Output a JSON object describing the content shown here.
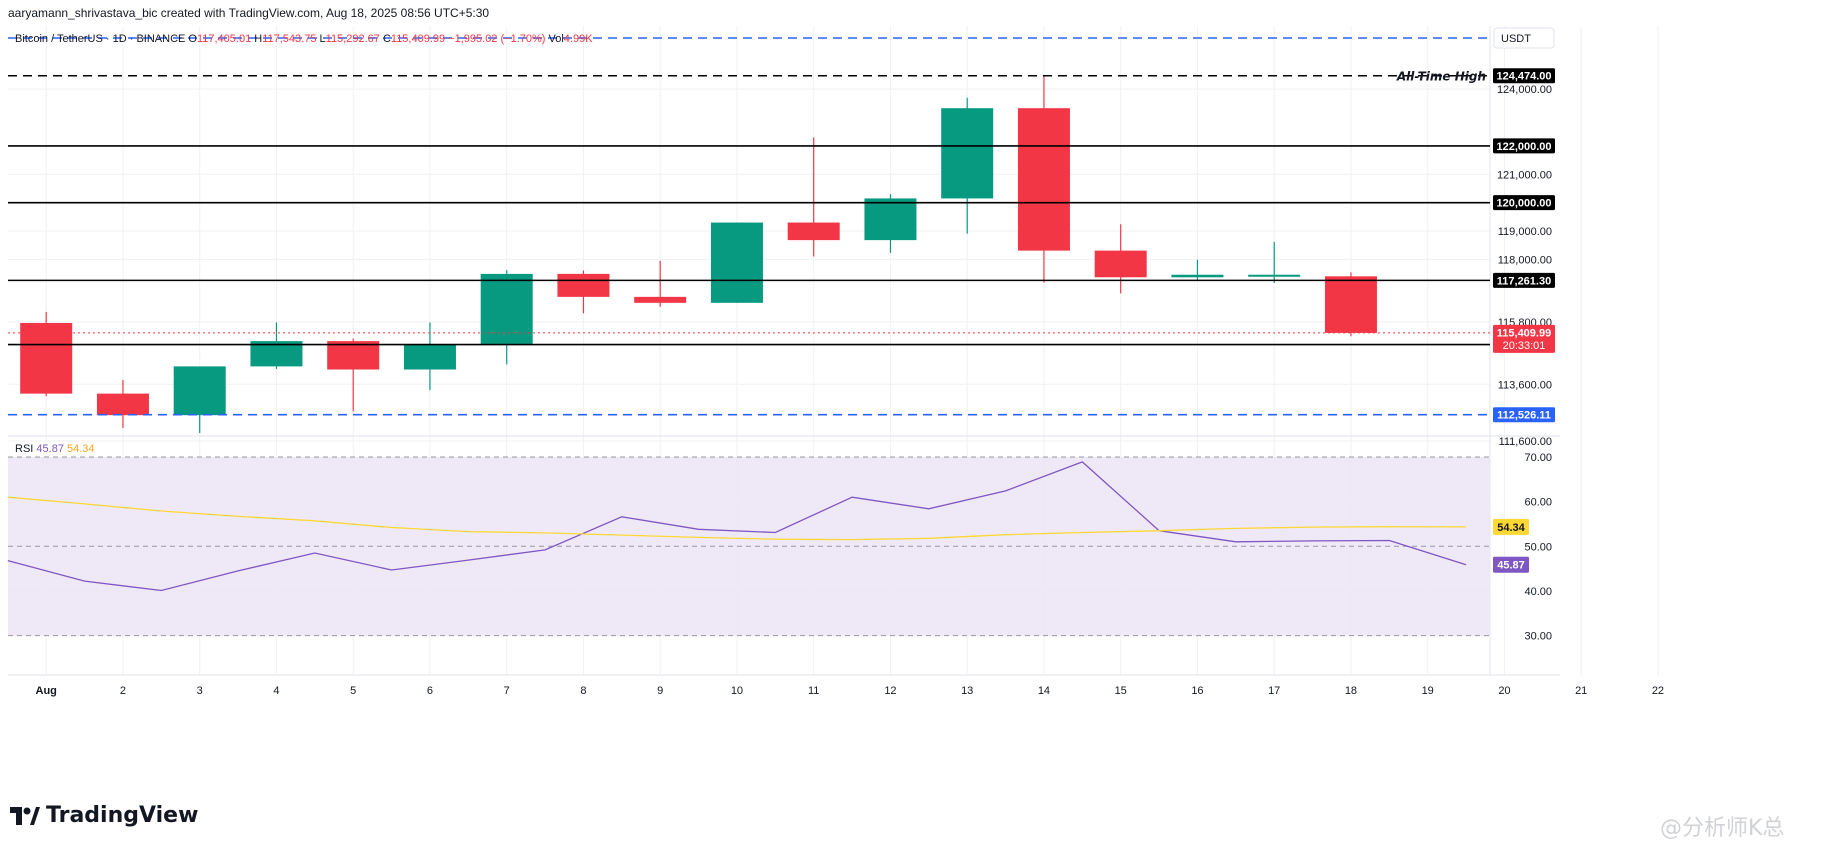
{
  "header": {
    "credit": "aaryamann_shrivastava_bic created with TradingView.com, Aug 18, 2025 08:56 UTC+5:30",
    "symbol": "Bitcoin / TetherUS · 1D · BINANCE",
    "o_label": "O",
    "o_value": "117,405.01",
    "h_label": "H",
    "h_value": "117,543.75",
    "l_label": "L",
    "l_value": "115,292.67",
    "c_label": "C",
    "c_value": "115,409.99",
    "change": "−1,995.02 (−1.70%)",
    "vol_label": "Vol",
    "vol_value": "4.99K"
  },
  "currency_badge": "USDT",
  "brand": "TradingView",
  "watermark": "@分析师K总",
  "colors": {
    "up": "#089981",
    "down": "#f23645",
    "blue_line": "#2962ff",
    "rsi": "#7e57c2",
    "rsi_ma": "#fdd835",
    "rsi_band": "#ede7f6"
  },
  "chart_data": [
    {
      "type": "candlestick",
      "title": "Bitcoin / TetherUS · 1D · BINANCE",
      "currency": "USDT",
      "x_labels": [
        "Aug",
        "2",
        "3",
        "4",
        "5",
        "6",
        "7",
        "8",
        "9",
        "10",
        "11",
        "12",
        "13",
        "14",
        "15",
        "16",
        "17",
        "18",
        "19",
        "20",
        "21",
        "22"
      ],
      "candles": [
        {
          "date": "Aug 1",
          "open": 115760,
          "high": 116150,
          "low": 113180,
          "close": 113270
        },
        {
          "date": "Aug 2",
          "open": 113270,
          "high": 113750,
          "low": 112060,
          "close": 112510
        },
        {
          "date": "Aug 3",
          "open": 112510,
          "high": 114150,
          "low": 111880,
          "close": 114230
        },
        {
          "date": "Aug 4",
          "open": 114230,
          "high": 115780,
          "low": 114140,
          "close": 115120
        },
        {
          "date": "Aug 5",
          "open": 115120,
          "high": 115210,
          "low": 112640,
          "close": 114120
        },
        {
          "date": "Aug 6",
          "open": 114120,
          "high": 115780,
          "low": 113390,
          "close": 115020
        },
        {
          "date": "Aug 7",
          "open": 115020,
          "high": 117620,
          "low": 114300,
          "close": 117490
        },
        {
          "date": "Aug 8",
          "open": 117490,
          "high": 117610,
          "low": 116100,
          "close": 116680
        },
        {
          "date": "Aug 9",
          "open": 116680,
          "high": 117950,
          "low": 116330,
          "close": 116470
        },
        {
          "date": "Aug 10",
          "open": 116470,
          "high": 119300,
          "low": 116470,
          "close": 119300
        },
        {
          "date": "Aug 11",
          "open": 119300,
          "high": 122300,
          "low": 118100,
          "close": 118680
        },
        {
          "date": "Aug 12",
          "open": 118680,
          "high": 120300,
          "low": 118230,
          "close": 120150
        },
        {
          "date": "Aug 13",
          "open": 120150,
          "high": 123700,
          "low": 118910,
          "close": 123330
        },
        {
          "date": "Aug 14",
          "open": 123330,
          "high": 124474,
          "low": 117180,
          "close": 118310
        },
        {
          "date": "Aug 15",
          "open": 118310,
          "high": 119240,
          "low": 116800,
          "close": 117370
        },
        {
          "date": "Aug 16",
          "open": 117370,
          "high": 117990,
          "low": 117240,
          "close": 117460
        },
        {
          "date": "Aug 17",
          "open": 117405,
          "high": 118620,
          "low": 117170,
          "close": 117460
        },
        {
          "date": "Aug 18",
          "open": 117405.01,
          "high": 117543.75,
          "low": 115292.67,
          "close": 115409.99
        }
      ],
      "y_axis_ticks": [
        "124,000.00",
        "121,000.00",
        "119,000.00",
        "118,000.00",
        "115,800.00",
        "113,600.00",
        "111,600.00"
      ],
      "horizontal_lines": [
        {
          "value": 124474.0,
          "label": "124,474.00",
          "style": "dashed",
          "color": "#000000",
          "annotation": "All-Time High"
        },
        {
          "value": 122000.0,
          "label": "122,000.00",
          "style": "solid",
          "color": "#000000"
        },
        {
          "value": 120000.0,
          "label": "120,000.00",
          "style": "solid",
          "color": "#000000"
        },
        {
          "value": 117261.3,
          "label": "117,261.30",
          "style": "solid",
          "color": "#000000"
        },
        {
          "value": 115000.0,
          "label": "115,000.00",
          "style": "solid",
          "color": "#000000"
        },
        {
          "value": 112526.11,
          "label": "112,526.11",
          "style": "dashed",
          "color": "#2962ff"
        }
      ],
      "last_price": {
        "value": 115409.99,
        "label": "115,409.99",
        "countdown": "20:33:01"
      },
      "ylim": [
        111200,
        126200
      ]
    },
    {
      "type": "line",
      "title": "RSI",
      "legend": [
        {
          "name": "RSI",
          "value": "45.87"
        },
        {
          "name": "",
          "value": "54.34"
        }
      ],
      "y_axis_ticks": [
        "70.00",
        "60.00",
        "50.00",
        "40.00",
        "30.00"
      ],
      "bands": {
        "upper": 70,
        "middle": 50,
        "lower": 30
      },
      "ylim": [
        25.4,
        75.7
      ],
      "series": [
        {
          "name": "RSI",
          "color": "#7e57c2",
          "last_label": "45.87",
          "values": [
            46.8,
            42.2,
            40.1,
            44.5,
            48.5,
            44.7,
            46.9,
            49.2,
            56.6,
            53.8,
            53.1,
            61.0,
            58.4,
            62.4,
            68.9,
            53.5,
            51.0,
            51.2,
            51.3,
            45.87
          ]
        },
        {
          "name": "RSI-based MA",
          "color": "#fdd835",
          "last_label": "54.34",
          "values": [
            61.0,
            59.5,
            57.9,
            56.7,
            55.7,
            54.2,
            53.3,
            53.0,
            52.5,
            52.0,
            51.6,
            51.5,
            51.8,
            52.6,
            53.1,
            53.5,
            54.0,
            54.3,
            54.4,
            54.34
          ]
        }
      ],
      "x_index_start": -0.5
    }
  ]
}
